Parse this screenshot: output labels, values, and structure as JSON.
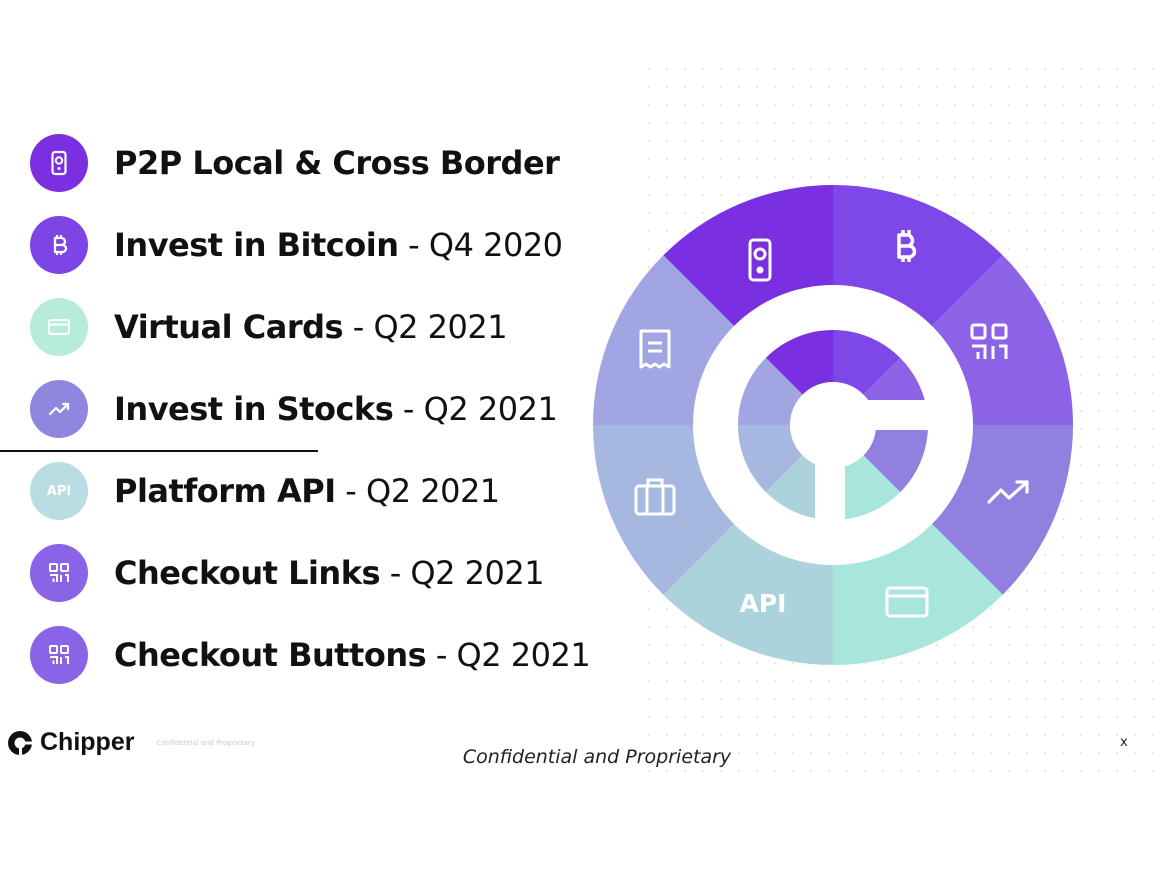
{
  "features": [
    {
      "name": "P2P Local & Cross Border",
      "date": "",
      "icon": "phone-icon",
      "color": "#7b2fe0"
    },
    {
      "name": "Invest in Bitcoin",
      "date": " - Q4 2020",
      "icon": "bitcoin-icon",
      "color": "#7d44e6"
    },
    {
      "name": "Virtual Cards",
      "date": " - Q2 2021",
      "icon": "card-icon",
      "color": "#b7ecdd"
    },
    {
      "name": "Invest in Stocks",
      "date": " - Q2 2021",
      "icon": "trend-up-icon",
      "color": "#8f86e0"
    },
    {
      "name": "Platform API",
      "date": " - Q2 2021",
      "icon": "api-icon",
      "icon_text": "API",
      "color": "#b9dde2"
    },
    {
      "name": "Checkout Links",
      "date": " - Q2 2021",
      "icon": "qr-code-icon",
      "color": "#8a63e6"
    },
    {
      "name": "Checkout Buttons",
      "date": " - Q2 2021",
      "icon": "qr-code-icon",
      "color": "#8a63e6"
    }
  ],
  "wheel": {
    "segments": [
      {
        "icon": "phone-icon",
        "color": "#7a2fe0"
      },
      {
        "icon": "bitcoin-icon",
        "color": "#7e47e8"
      },
      {
        "icon": "qr-code-icon",
        "color": "#8c62e6"
      },
      {
        "icon": "trend-up-icon",
        "color": "#9180e0"
      },
      {
        "icon": "card-icon",
        "color": "#a8e6dc"
      },
      {
        "icon": "api-icon",
        "label": "API",
        "color": "#acd3dc"
      },
      {
        "icon": "briefcase-icon",
        "color": "#a6b7e0"
      },
      {
        "icon": "receipt-icon",
        "color": "#a1a5e2"
      }
    ]
  },
  "footer": {
    "logo_text": "Chipper",
    "small_note": "Confidential and Proprietary",
    "center_text": "Confidential and Proprietary",
    "page_marker": "x"
  }
}
